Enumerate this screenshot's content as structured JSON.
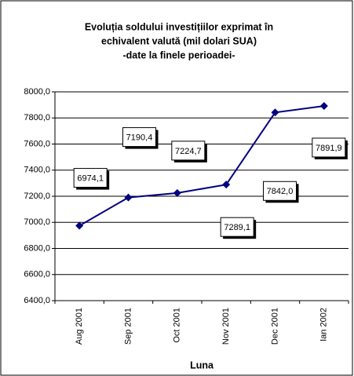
{
  "chart_data": {
    "type": "line",
    "title": [
      "Evoluția soldului investițiilor exprimat în",
      "echivalent valută (mil dolari SUA)",
      "-date la finele perioadei-"
    ],
    "xlabel": "Luna",
    "categories": [
      "Aug 2001",
      "Sep 2001",
      "Oct 2001",
      "Nov 2001",
      "Dec 2001",
      "Ian 2002"
    ],
    "values": [
      6974.1,
      7190.4,
      7224.7,
      7289.1,
      7842.0,
      7891.9
    ],
    "value_labels": [
      "6974,1",
      "7190,4",
      "7224,7",
      "7289,1",
      "7842,0",
      "7891,9"
    ],
    "color": "#000080",
    "ylim": [
      6400,
      8000
    ],
    "yticks": [
      {
        "value": 6400,
        "label": "6400,0"
      },
      {
        "value": 6600,
        "label": "6600,0"
      },
      {
        "value": 6800,
        "label": "6800,0"
      },
      {
        "value": 7000,
        "label": "7000,0"
      },
      {
        "value": 7200,
        "label": "7200,0"
      },
      {
        "value": 7400,
        "label": "7400,0"
      },
      {
        "value": 7600,
        "label": "7600,0"
      },
      {
        "value": 7800,
        "label": "7800,0"
      },
      {
        "value": 8000,
        "label": "8000,0"
      }
    ],
    "grid": true
  }
}
